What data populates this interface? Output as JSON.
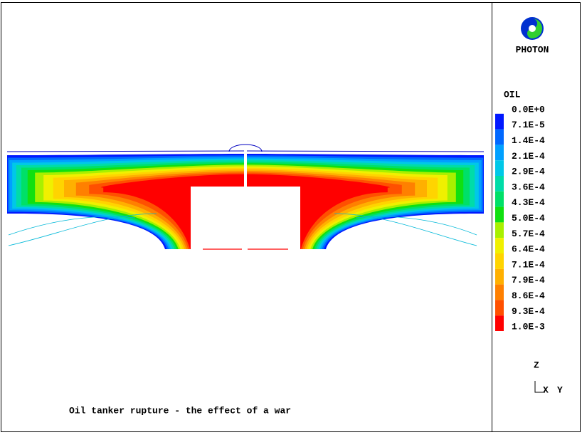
{
  "logo": {
    "text": "PHOTON"
  },
  "legend": {
    "title": "OIL",
    "levels": [
      {
        "label": "0.0E+0"
      },
      {
        "label": "7.1E-5",
        "color": "#0018ff"
      },
      {
        "label": "1.4E-4",
        "color": "#0068ff"
      },
      {
        "label": "2.1E-4",
        "color": "#00a0ff"
      },
      {
        "label": "2.9E-4",
        "color": "#00c8e8"
      },
      {
        "label": "3.6E-4",
        "color": "#00dca8"
      },
      {
        "label": "4.3E-4",
        "color": "#00e068"
      },
      {
        "label": "5.0E-4",
        "color": "#10e010"
      },
      {
        "label": "5.7E-4",
        "color": "#a8f000"
      },
      {
        "label": "6.4E-4",
        "color": "#f0f000"
      },
      {
        "label": "7.1E-4",
        "color": "#ffd400"
      },
      {
        "label": "7.9E-4",
        "color": "#ffb000"
      },
      {
        "label": "8.6E-4",
        "color": "#ff8000"
      },
      {
        "label": "9.3E-4",
        "color": "#ff5000"
      },
      {
        "label": "1.0E-3",
        "color": "#ff0000"
      }
    ]
  },
  "axes": {
    "z": "Z",
    "x": "X",
    "y": "Y"
  },
  "caption": "Oil tanker rupture - the effect of a war"
}
